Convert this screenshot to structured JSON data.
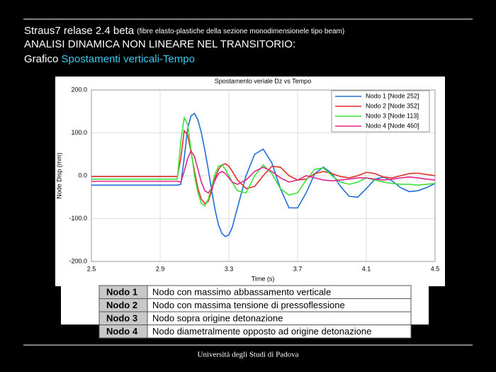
{
  "header": {
    "title": "Straus7 relase 2.4 beta",
    "note": "(fibre elasto-plastiche della sezione monodimensionele tipo beam)",
    "subtitle": "ANALISI DINAMICA NON LINEARE NEL TRANSITORIO:",
    "caption_prefix": "Grafico",
    "caption_highlight": "Spostamenti verticali-Tempo"
  },
  "chart_data": {
    "type": "line",
    "title": "Spostamento veriale Dz vs Tempo",
    "x_label": "Time (s)",
    "y_label": "Node Disp  (mm)",
    "x": [
      2.5,
      3.0,
      3.02,
      3.04,
      3.06,
      3.08,
      3.1,
      3.12,
      3.14,
      3.16,
      3.18,
      3.2,
      3.22,
      3.24,
      3.26,
      3.28,
      3.3,
      3.32,
      3.35,
      3.4,
      3.45,
      3.5,
      3.55,
      3.6,
      3.65,
      3.7,
      3.75,
      3.8,
      3.85,
      3.9,
      3.95,
      4.0,
      4.05,
      4.1,
      4.15,
      4.2,
      4.25,
      4.3,
      4.35,
      4.4,
      4.45,
      4.5
    ],
    "series": [
      {
        "name": "Nodo 1 [Node 252]",
        "color": "#1f6fd6",
        "values": [
          -22,
          -22,
          -20,
          40,
          110,
          140,
          145,
          130,
          100,
          60,
          15,
          -35,
          -80,
          -115,
          -135,
          -142,
          -138,
          -120,
          -75,
          0,
          50,
          62,
          30,
          -30,
          -75,
          -75,
          -40,
          5,
          20,
          5,
          -25,
          -48,
          -50,
          -30,
          -8,
          -3,
          -12,
          -28,
          -37,
          -35,
          -28,
          -18
        ]
      },
      {
        "name": "Nodo 2 [Node 352]",
        "color": "#e0302a",
        "values": [
          -2,
          -2,
          40,
          105,
          95,
          55,
          10,
          -30,
          -55,
          -65,
          -60,
          -35,
          -5,
          15,
          25,
          28,
          22,
          10,
          -10,
          -30,
          -25,
          0,
          22,
          20,
          0,
          -10,
          -8,
          5,
          10,
          5,
          -2,
          -5,
          0,
          8,
          5,
          -3,
          -5,
          0,
          5,
          6,
          3,
          0
        ]
      },
      {
        "name": "Nodo 3 [Node 113]",
        "color": "#3ee03a",
        "values": [
          -8,
          -8,
          80,
          135,
          120,
          60,
          0,
          -40,
          -65,
          -70,
          -55,
          -25,
          5,
          22,
          25,
          15,
          0,
          -15,
          -35,
          -40,
          0,
          25,
          5,
          -30,
          -45,
          -40,
          -10,
          15,
          18,
          0,
          -15,
          -20,
          -15,
          -5,
          -10,
          -15,
          -18,
          -20,
          -20,
          -22,
          -20,
          -18
        ]
      },
      {
        "name": "Nodo 4 [Node 460]",
        "color": "#e0288a",
        "values": [
          -13,
          -13,
          -15,
          10,
          40,
          58,
          45,
          15,
          -15,
          -35,
          -40,
          -30,
          -10,
          5,
          10,
          5,
          -5,
          -15,
          -20,
          -10,
          10,
          20,
          10,
          -5,
          -15,
          -10,
          0,
          -5,
          -10,
          -12,
          -10,
          -8,
          -5,
          -5,
          -8,
          -10,
          -8,
          -5,
          -3,
          -5,
          -8,
          -10
        ]
      }
    ],
    "xlim": [
      2.5,
      4.5
    ],
    "xticks": [
      2.5,
      2.9,
      3.3,
      3.7,
      4.1,
      4.5
    ],
    "ylim": [
      -200,
      200
    ],
    "yticks": [
      {
        "value": -200,
        "label": "-200.0"
      },
      {
        "value": -100,
        "label": "-100.0"
      },
      {
        "value": 0,
        "label": "0.0"
      },
      {
        "value": 100,
        "label": "100.0"
      },
      {
        "value": 200,
        "label": "200.0"
      }
    ],
    "grid": true,
    "legend": "upper right"
  },
  "table": {
    "rows": [
      [
        "Nodo 1",
        "Nodo con massimo abbassamento verticale"
      ],
      [
        "Nodo 2",
        "Nodo con massima tensione di pressoflessione"
      ],
      [
        "Nodo 3",
        "Nodo sopra origine detonazione"
      ],
      [
        "Nodo 4",
        "Nodo diametralmente opposto ad origine detonazione"
      ]
    ]
  },
  "footer": "Università degli Studi di Padova"
}
